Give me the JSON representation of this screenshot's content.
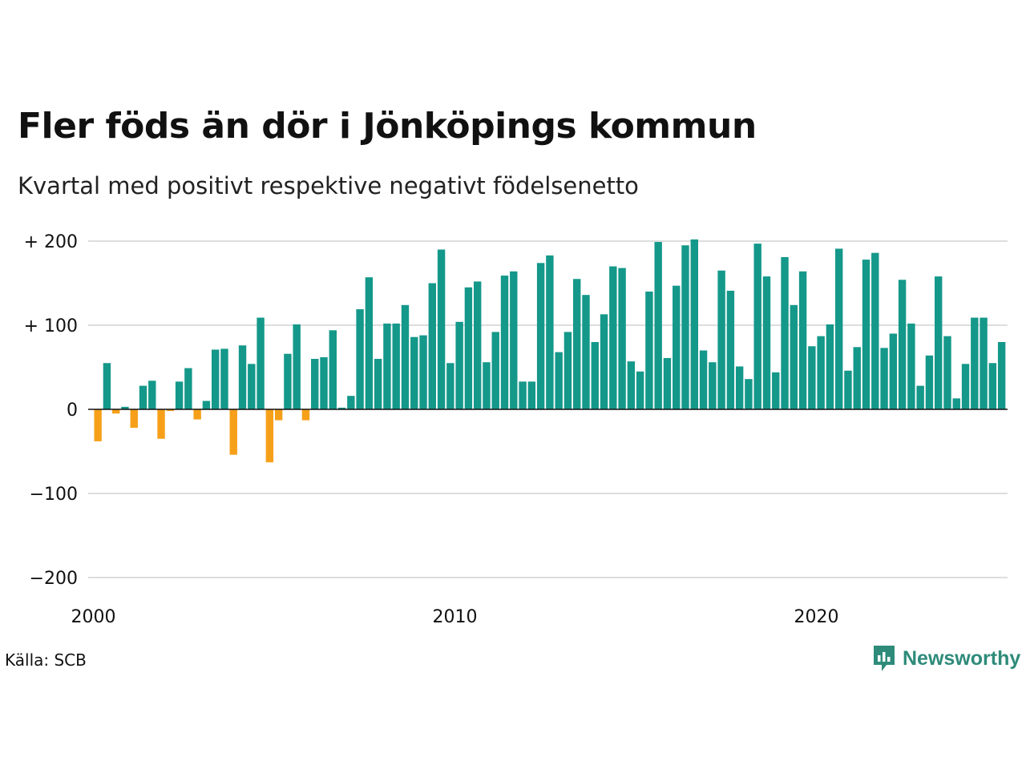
{
  "title": "Fler föds än dör i Jönköpings kommun",
  "subtitle": "Kvartal med positivt respektive negativt födelsenetto",
  "source": "Källa: SCB",
  "brand": "Newsworthy",
  "colors": {
    "positive": "#14988a",
    "negative": "#f6a01a",
    "grid": "#dddddd",
    "zero": "#111111",
    "brand": "#2e8b7a"
  },
  "chart_data": {
    "type": "bar",
    "y_ticks": [
      {
        "value": 200,
        "label": "+ 200"
      },
      {
        "value": 100,
        "label": "+ 100"
      },
      {
        "value": 0,
        "label": "0"
      },
      {
        "value": -100,
        "label": "−100"
      },
      {
        "value": -200,
        "label": "−200"
      }
    ],
    "x_ticks": [
      {
        "value": 2000,
        "label": "2000"
      },
      {
        "value": 2010,
        "label": "2010"
      },
      {
        "value": 2020,
        "label": "2020"
      }
    ],
    "ylim": [
      -200,
      200
    ],
    "grid": true,
    "start_year": 2000,
    "periods_per_year": 4,
    "values": [
      -38,
      55,
      -5,
      3,
      -22,
      28,
      34,
      -35,
      -2,
      33,
      49,
      -12,
      10,
      71,
      72,
      -54,
      76,
      54,
      109,
      -63,
      -13,
      66,
      101,
      -13,
      60,
      62,
      94,
      2,
      16,
      119,
      157,
      60,
      102,
      102,
      124,
      86,
      88,
      150,
      190,
      55,
      104,
      145,
      152,
      56,
      92,
      159,
      164,
      33,
      33,
      174,
      183,
      68,
      92,
      155,
      136,
      80,
      113,
      170,
      168,
      57,
      45,
      140,
      199,
      61,
      147,
      195,
      202,
      70,
      56,
      165,
      141,
      51,
      36,
      197,
      158,
      44,
      181,
      124,
      164,
      75,
      87,
      101,
      191,
      46,
      74,
      178,
      186,
      73,
      90,
      154,
      102,
      28,
      64,
      158,
      87,
      13,
      54,
      109,
      109,
      55,
      80
    ]
  }
}
